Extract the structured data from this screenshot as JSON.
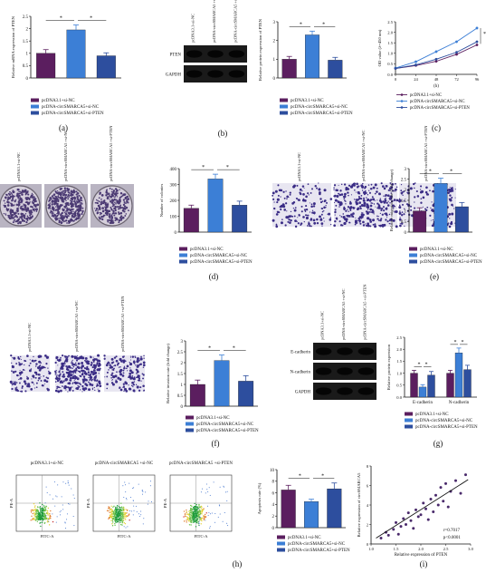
{
  "colors": {
    "purple": "#5b1e5f",
    "blue": "#3c7fd6",
    "navy": "#2d4e9e"
  },
  "legend3": [
    "pcDNA3.1+si-NC",
    "pcDNA-circSMARCA5+si-NC",
    "pcDNA-circSMARCA5+si-PTEN"
  ],
  "legend3_short": [
    "pcDNA3.1+si-NC",
    "pcDNA-circSMARCA5+si-NC",
    "pcDNA-circSMARCA5+si-PTEN"
  ],
  "sig": "*",
  "panel_letters": [
    "(a)",
    "(b)",
    "(c)",
    "(d)",
    "(e)",
    "(f)",
    "(g)",
    "(h)",
    "(i)"
  ],
  "blot_b": {
    "lanes": [
      "pcDNA3.1+si-NC",
      "pcDNA-circSMARCA5 +si-NC",
      "pcDNA-circSMARCA5 +si-PTEN"
    ],
    "rows": [
      "PTEN",
      "GAPDH"
    ]
  },
  "blot_g": {
    "lanes": [
      "pcDNA3.1+si-NC",
      "pcDNA-circSMARCA5 +si-NC",
      "pcDNA-circSMARCA5 +si-PTEN"
    ],
    "rows": [
      "E-cadherin",
      "N-cadherin",
      "GAPDH"
    ]
  },
  "colony_d": {
    "lanes": [
      "pcDNA3.1+si-NC",
      "pcDNA-circSMARCA5 +si-NC",
      "pcDNA-circSMARCA5 +si-PTEN"
    ]
  },
  "transwell_e": {
    "lanes": [
      "pcDNA3.1+si-NC",
      "pcDNA-circSMARCA5 +si-NC",
      "pcDNA-circSMARCA5 +si-PTEN"
    ]
  },
  "transwell_f": {
    "lanes": [
      "pcDNA3.1+si-NC",
      "pcDNA-circSMARCA5 +si-NC",
      "pcDNA-circSMARCA5 +si-PTEN"
    ]
  },
  "flow_h": {
    "titles": [
      "pcDNA3.1+si-NC",
      "pcDNA-circSMARCA5 +si-NC",
      "pcDNA-circSMARCA5 +si-PTEN"
    ],
    "xlabel": "FITC-A",
    "ylabel": "PE-A"
  },
  "chart_data": [
    {
      "id": "a",
      "type": "bar",
      "ylabel": "Relative mRNA expression of PTEN",
      "ylim": [
        0,
        2.5
      ],
      "yticks": [
        0,
        0.5,
        1.0,
        1.5,
        2.0,
        2.5
      ],
      "values": [
        1.0,
        1.95,
        0.9
      ],
      "errors": [
        0.15,
        0.2,
        0.12
      ]
    },
    {
      "id": "b",
      "type": "bar",
      "ylabel": "Relative protein expression of PTEN",
      "ylim": [
        0,
        3
      ],
      "yticks": [
        0,
        1,
        2,
        3
      ],
      "values": [
        1.0,
        2.3,
        0.95
      ],
      "errors": [
        0.15,
        0.2,
        0.15
      ]
    },
    {
      "id": "c",
      "type": "line",
      "ylabel": "OD value (λ=450 nm)",
      "xlabel": "(h)",
      "x": [
        0,
        24,
        48,
        72,
        96
      ],
      "ylim": [
        0,
        2.5
      ],
      "yticks": [
        0,
        0.5,
        1.0,
        1.5,
        2.0,
        2.5
      ],
      "series": [
        {
          "name": "pcDNA3.1+si-NC",
          "values": [
            0.28,
            0.42,
            0.62,
            0.95,
            1.4
          ]
        },
        {
          "name": "pcDNA-circSMARCA5+si-NC",
          "values": [
            0.3,
            0.6,
            1.08,
            1.55,
            2.2
          ]
        },
        {
          "name": "pcDNA-circSMARCA5+si-PTEN",
          "values": [
            0.28,
            0.45,
            0.72,
            1.05,
            1.55
          ]
        }
      ]
    },
    {
      "id": "d",
      "type": "bar",
      "ylabel": "Number of colonies",
      "ylim": [
        0,
        400
      ],
      "yticks": [
        0,
        100,
        200,
        300,
        400
      ],
      "values": [
        150,
        335,
        170
      ],
      "errors": [
        20,
        30,
        25
      ]
    },
    {
      "id": "e",
      "type": "bar",
      "ylabel": "Relative migration rate (fold change)",
      "ylim": [
        0,
        3
      ],
      "yticks": [
        0,
        0.5,
        1.0,
        1.5,
        2.0,
        2.5,
        3.0
      ],
      "values": [
        1.0,
        2.3,
        1.2
      ],
      "errors": [
        0.15,
        0.25,
        0.2
      ]
    },
    {
      "id": "f",
      "type": "bar",
      "ylabel": "Relative invasion rate (fold change)",
      "ylim": [
        0,
        3
      ],
      "yticks": [
        0,
        0.5,
        1.0,
        1.5,
        2.0,
        2.5,
        3.0
      ],
      "values": [
        1.0,
        2.1,
        1.15
      ],
      "errors": [
        0.2,
        0.25,
        0.25
      ]
    },
    {
      "id": "g",
      "type": "bar",
      "ylabel": "Relative protein expression",
      "ylim": [
        0,
        2.5
      ],
      "yticks": [
        0,
        0.5,
        1.0,
        1.5,
        2.0,
        2.5
      ],
      "categories": [
        "E-cadherin",
        "N-cadherin"
      ],
      "series": [
        {
          "name": "pcDNA3.1+si-NC",
          "values": [
            1.0,
            1.0
          ]
        },
        {
          "name": "pcDNA-circSMARCA5+si-NC",
          "values": [
            0.42,
            1.85
          ]
        },
        {
          "name": "pcDNA-circSMARCA5+si-PTEN",
          "values": [
            0.92,
            1.15
          ]
        }
      ],
      "errors": [
        [
          0.12,
          0.12
        ],
        [
          0.1,
          0.2
        ],
        [
          0.15,
          0.18
        ]
      ]
    },
    {
      "id": "h",
      "type": "bar",
      "ylabel": "Apoptosis rate (%)",
      "ylim": [
        0,
        10
      ],
      "yticks": [
        0,
        2,
        4,
        6,
        8,
        10
      ],
      "values": [
        6.5,
        4.5,
        6.7
      ],
      "errors": [
        0.8,
        0.4,
        1.0
      ]
    },
    {
      "id": "i",
      "type": "scatter",
      "xlabel": "Relative expression of PTEN",
      "ylabel": "Relative expression of circSMARCA5",
      "xlim": [
        1.0,
        3.0
      ],
      "ylim": [
        0,
        8
      ],
      "xticks": [
        1.0,
        1.5,
        2.0,
        2.5,
        3.0
      ],
      "yticks": [
        0,
        2,
        4,
        6,
        8
      ],
      "annotation": [
        "r=0.7017",
        "p<0.0001"
      ],
      "points": [
        [
          1.2,
          0.6
        ],
        [
          1.3,
          1.2
        ],
        [
          1.35,
          0.9
        ],
        [
          1.45,
          1.5
        ],
        [
          1.5,
          2.2
        ],
        [
          1.55,
          1.0
        ],
        [
          1.6,
          1.8
        ],
        [
          1.65,
          2.6
        ],
        [
          1.7,
          2.0
        ],
        [
          1.75,
          3.2
        ],
        [
          1.8,
          2.4
        ],
        [
          1.85,
          1.6
        ],
        [
          1.9,
          3.5
        ],
        [
          1.95,
          2.8
        ],
        [
          2.0,
          3.0
        ],
        [
          2.05,
          4.2
        ],
        [
          2.1,
          3.6
        ],
        [
          2.15,
          2.5
        ],
        [
          2.2,
          4.6
        ],
        [
          2.25,
          3.3
        ],
        [
          2.3,
          5.0
        ],
        [
          2.35,
          4.0
        ],
        [
          2.4,
          5.8
        ],
        [
          2.45,
          4.4
        ],
        [
          2.5,
          6.2
        ],
        [
          2.55,
          3.8
        ],
        [
          2.6,
          5.4
        ],
        [
          2.7,
          6.5
        ],
        [
          2.8,
          5.2
        ],
        [
          2.9,
          7.1
        ]
      ]
    }
  ]
}
